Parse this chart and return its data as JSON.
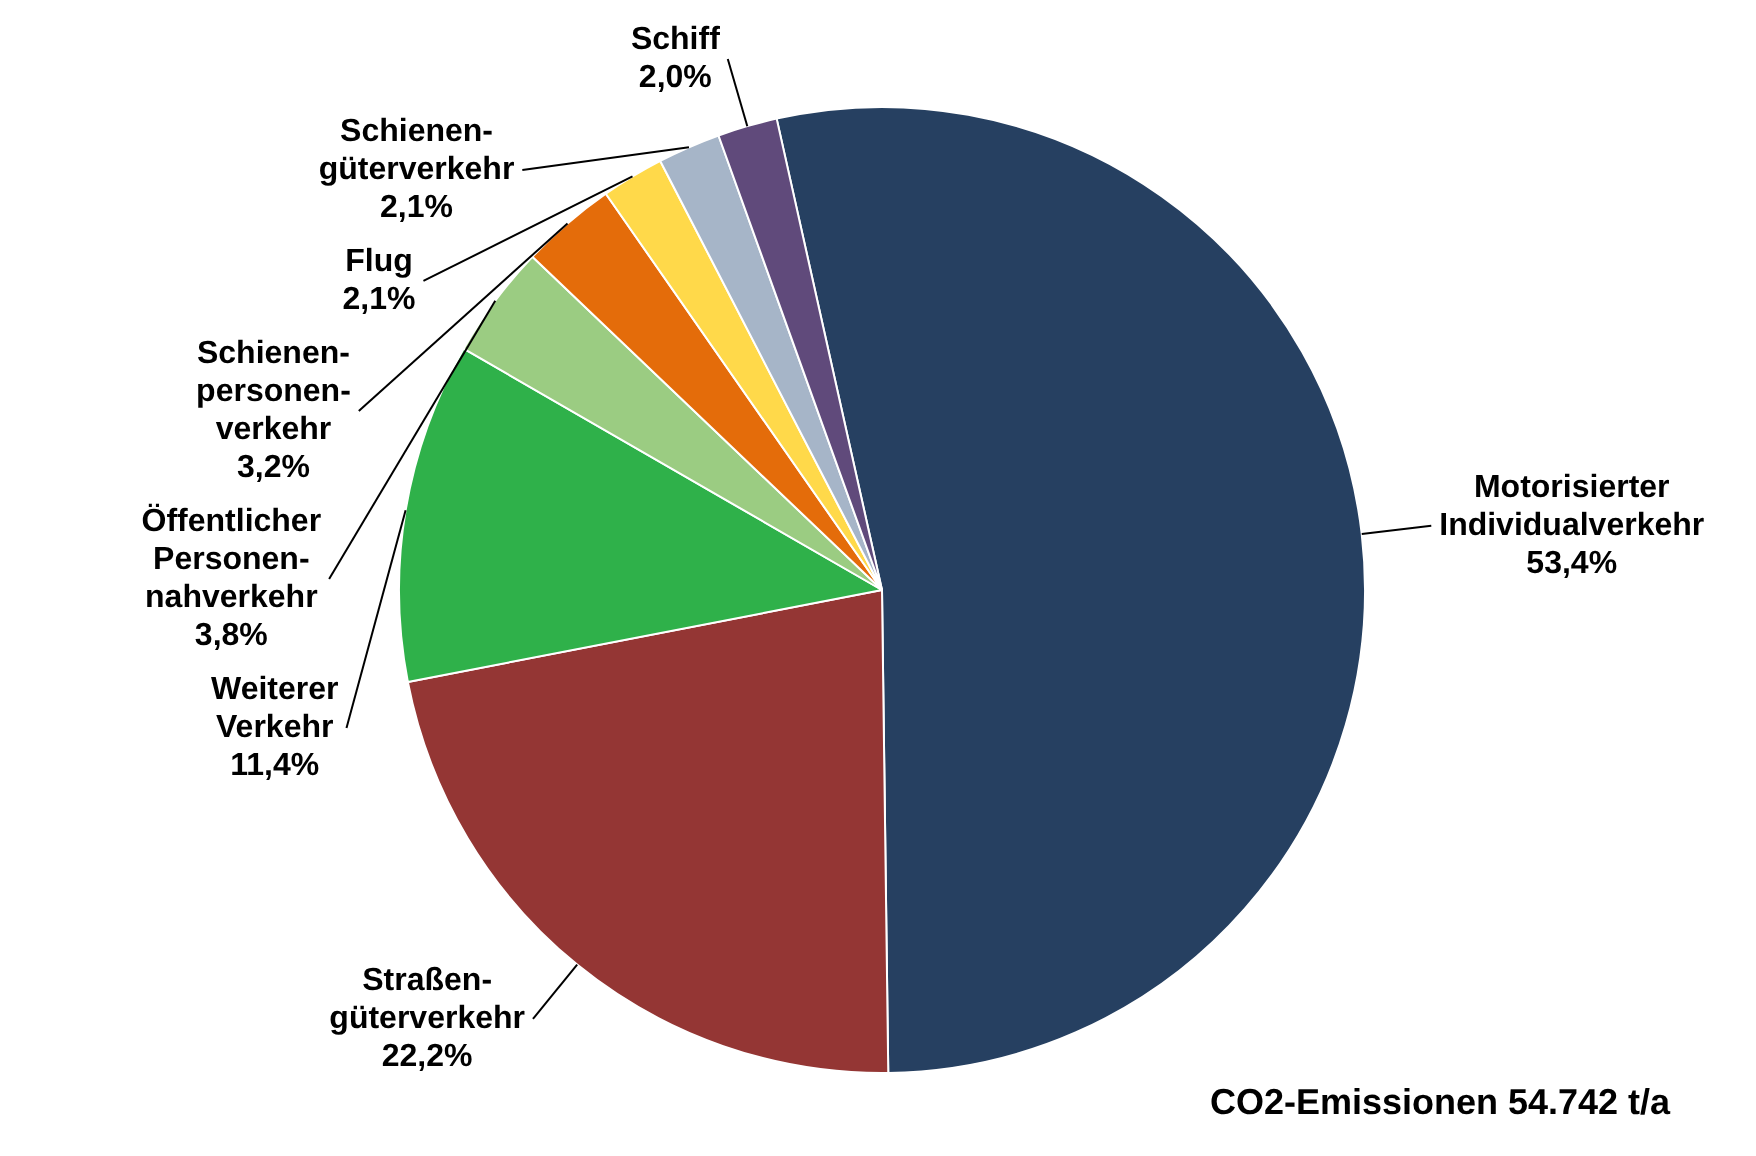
{
  "chart_data": {
    "type": "pie",
    "categories": [
      "Motorisierter\nIndividualverkehr",
      "Straßen-\ngüterverkehr",
      "Weiterer\nVerkehr",
      "Öffentlicher\nPersonen-\nnahverkehr",
      "Schienen-\npersonen-\nverkehr",
      "Flug",
      "Schienen-\ngüterverkehr",
      "Schiff"
    ],
    "values": [
      53.4,
      22.2,
      11.4,
      3.8,
      3.2,
      2.1,
      2.1,
      2.0
    ],
    "value_labels": [
      "53,4%",
      "22,2%",
      "11,4%",
      "3,8%",
      "3,2%",
      "2,1%",
      "2,1%",
      "2,0%"
    ],
    "colors": [
      "#264061",
      "#943634",
      "#2fb14a",
      "#9bcc82",
      "#e46c0a",
      "#ffd94a",
      "#a6b5c8",
      "#604a7b"
    ],
    "annotations": [
      "CO2-Emissionen 54.742 t/a"
    ],
    "legend": false
  }
}
